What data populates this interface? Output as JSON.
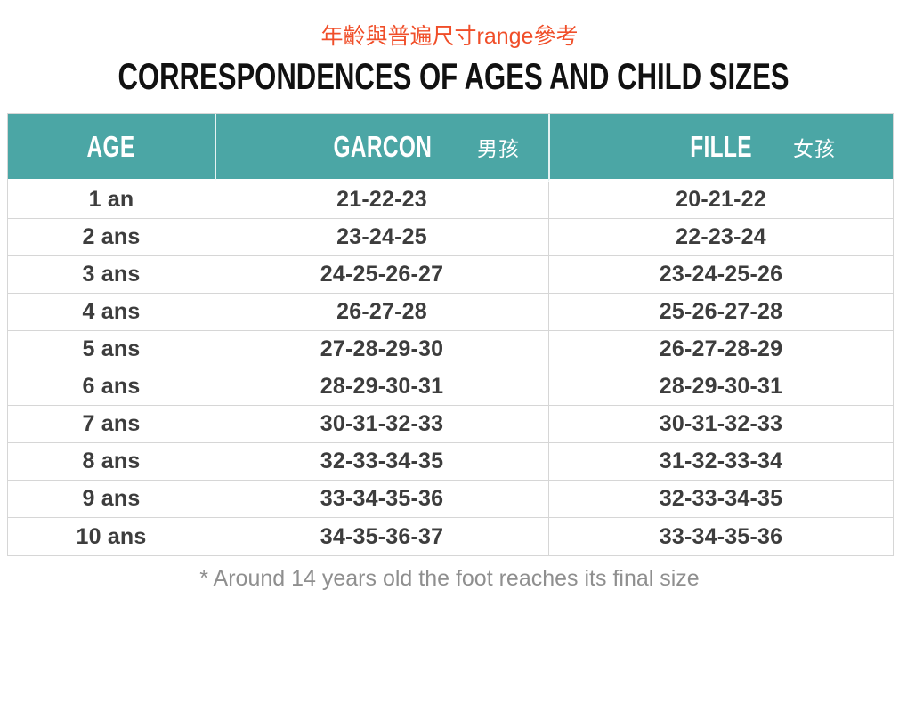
{
  "page": {
    "subtitle_cjk": "年齡與普遍尺寸range參考",
    "title": "CORRESPONDENCES OF AGES AND CHILD SIZES",
    "footnote": "* Around 14 years old the foot reaches its final size"
  },
  "colors": {
    "header_bg": "#4ba6a5",
    "header_text": "#ffffff",
    "accent": "#f04e29",
    "title_text": "#111111",
    "body_text": "#3d3d3d",
    "border": "#d6d6d6",
    "footnote_text": "#8f8f8f"
  },
  "table": {
    "headers": [
      {
        "label": "AGE"
      },
      {
        "label": "GARCON",
        "label_cjk": "男孩"
      },
      {
        "label": "FILLE",
        "label_cjk": "女孩"
      }
    ],
    "rows": [
      [
        "1 an",
        "21-22-23",
        "20-21-22"
      ],
      [
        "2 ans",
        "23-24-25",
        "22-23-24"
      ],
      [
        "3 ans",
        "24-25-26-27",
        "23-24-25-26"
      ],
      [
        "4 ans",
        "26-27-28",
        "25-26-27-28"
      ],
      [
        "5 ans",
        "27-28-29-30",
        "26-27-28-29"
      ],
      [
        "6 ans",
        "28-29-30-31",
        "28-29-30-31"
      ],
      [
        "7 ans",
        "30-31-32-33",
        "30-31-32-33"
      ],
      [
        "8 ans",
        "32-33-34-35",
        "31-32-33-34"
      ],
      [
        "9 ans",
        "33-34-35-36",
        "32-33-34-35"
      ],
      [
        "10 ans",
        "34-35-36-37",
        "33-34-35-36"
      ]
    ]
  },
  "chart_data": {
    "type": "table",
    "title": "CORRESPONDENCES OF AGES AND CHILD SIZES",
    "subtitle": "年齡與普遍尺寸range參考",
    "columns": [
      "AGE",
      "GARCON 男孩",
      "FILLE 女孩"
    ],
    "rows": [
      [
        "1 an",
        "21-22-23",
        "20-21-22"
      ],
      [
        "2 ans",
        "23-24-25",
        "22-23-24"
      ],
      [
        "3 ans",
        "24-25-26-27",
        "23-24-25-26"
      ],
      [
        "4 ans",
        "26-27-28",
        "25-26-27-28"
      ],
      [
        "5 ans",
        "27-28-29-30",
        "26-27-28-29"
      ],
      [
        "6 ans",
        "28-29-30-31",
        "28-29-30-31"
      ],
      [
        "7 ans",
        "30-31-32-33",
        "30-31-32-33"
      ],
      [
        "8 ans",
        "32-33-34-35",
        "31-32-33-34"
      ],
      [
        "9 ans",
        "33-34-35-36",
        "32-33-34-35"
      ],
      [
        "10 ans",
        "34-35-36-37",
        "33-34-35-36"
      ]
    ],
    "footnote": "* Around 14 years old the foot reaches its final size",
    "layout": {
      "header_bg": "#4ba6a5",
      "grid": true,
      "header_text_color": "#ffffff"
    }
  }
}
